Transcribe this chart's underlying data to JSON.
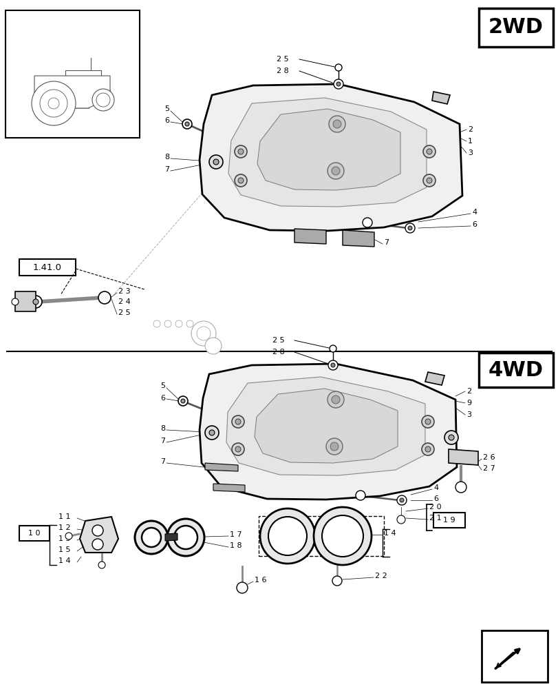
{
  "bg_color": "#ffffff",
  "line_color": "#000000",
  "light_line_color": "#888888",
  "fig_width": 8.12,
  "fig_height": 10.0,
  "dpi": 100,
  "title_2wd": "2WD",
  "title_4wd": "4WD",
  "ref_label": "1.41.0",
  "font_size_label": 8,
  "font_size_title": 22
}
